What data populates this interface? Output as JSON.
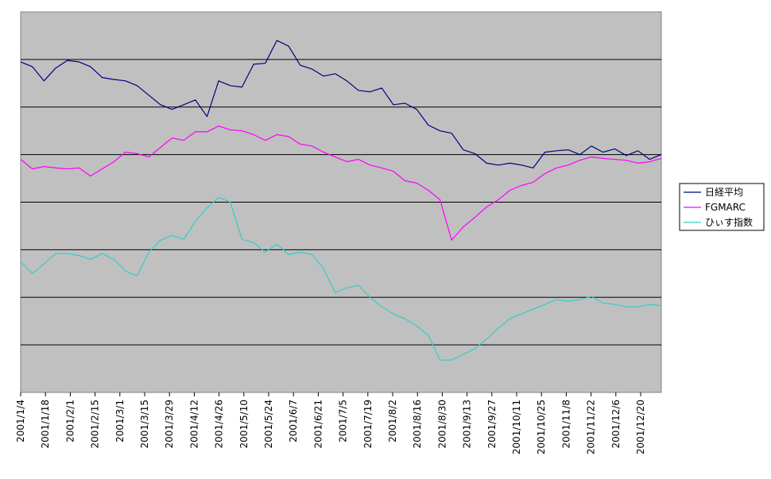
{
  "chart_data": {
    "type": "line",
    "title": "",
    "xlabel": "",
    "ylabel": "",
    "x_tick_labels": [
      "2001/1/4",
      "2001/1/18",
      "2001/2/1",
      "2001/2/15",
      "2001/3/1",
      "2001/3/15",
      "2001/3/29",
      "2001/4/12",
      "2001/4/26",
      "2001/5/10",
      "2001/5/24",
      "2001/6/7",
      "2001/6/21",
      "2001/7/5",
      "2001/7/19",
      "2001/8/2",
      "2001/8/16",
      "2001/8/30",
      "2001/9/13",
      "2001/9/27",
      "2001/10/11",
      "2001/10/25",
      "2001/11/8",
      "2001/11/22",
      "2001/12/6",
      "2001/12/20"
    ],
    "y_axis_labels_shown": false,
    "ylim": [
      0,
      8
    ],
    "grid": "horizontal",
    "plot_background": "#c0c0c0",
    "legend_position": "right",
    "series": [
      {
        "name": "日経平均",
        "color": "#000080",
        "values": [
          6.95,
          6.85,
          6.55,
          6.82,
          6.98,
          6.95,
          6.85,
          6.62,
          6.58,
          6.55,
          6.45,
          6.25,
          6.05,
          5.95,
          6.05,
          6.15,
          5.8,
          6.55,
          6.45,
          6.42,
          6.9,
          6.92,
          7.4,
          7.28,
          6.88,
          6.8,
          6.65,
          6.7,
          6.55,
          6.35,
          6.32,
          6.4,
          6.05,
          6.08,
          5.95,
          5.62,
          5.5,
          5.45,
          5.1,
          5.02,
          4.82,
          4.78,
          4.82,
          4.78,
          4.72,
          5.05,
          5.08,
          5.1,
          5.0,
          5.18,
          5.05,
          5.12,
          4.98,
          5.08,
          4.9,
          5.0
        ]
      },
      {
        "name": "FGMARC",
        "color": "#ff00ff",
        "values": [
          4.9,
          4.7,
          4.75,
          4.72,
          4.7,
          4.72,
          4.55,
          4.7,
          4.85,
          5.05,
          5.02,
          4.95,
          5.15,
          5.35,
          5.3,
          5.48,
          5.48,
          5.6,
          5.52,
          5.5,
          5.42,
          5.3,
          5.42,
          5.38,
          5.22,
          5.18,
          5.05,
          4.95,
          4.85,
          4.9,
          4.78,
          4.72,
          4.65,
          4.45,
          4.4,
          4.25,
          4.05,
          3.2,
          3.48,
          3.68,
          3.9,
          4.05,
          4.25,
          4.35,
          4.42,
          4.6,
          4.72,
          4.78,
          4.88,
          4.95,
          4.92,
          4.9,
          4.88,
          4.82,
          4.85,
          4.92
        ]
      },
      {
        "name": "ひぃす指数",
        "color": "#33cccc",
        "values": [
          2.75,
          2.5,
          2.7,
          2.92,
          2.92,
          2.88,
          2.8,
          2.92,
          2.8,
          2.55,
          2.45,
          2.95,
          3.2,
          3.3,
          3.22,
          3.6,
          3.88,
          4.1,
          4.0,
          3.22,
          3.15,
          2.95,
          3.12,
          2.9,
          2.95,
          2.9,
          2.6,
          2.1,
          2.2,
          2.25,
          2.0,
          1.8,
          1.65,
          1.55,
          1.4,
          1.2,
          0.68,
          0.68,
          0.8,
          0.92,
          1.12,
          1.35,
          1.55,
          1.65,
          1.75,
          1.85,
          1.95,
          1.92,
          1.95,
          2.02,
          1.88,
          1.85,
          1.8,
          1.8,
          1.85,
          1.82
        ]
      }
    ]
  }
}
